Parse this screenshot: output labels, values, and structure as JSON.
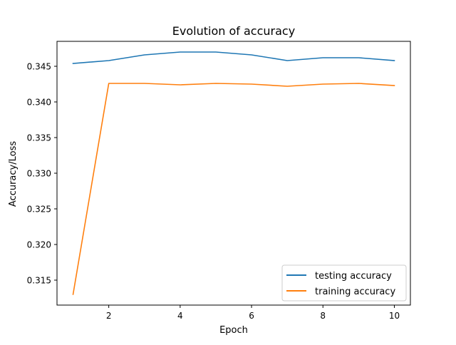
{
  "chart_data": {
    "type": "line",
    "title": "Evolution of accuracy",
    "xlabel": "Epoch",
    "ylabel": "Accuracy/Loss",
    "xlim": [
      0.55,
      10.45
    ],
    "ylim": [
      0.3115,
      0.3485
    ],
    "xticks": [
      2,
      4,
      6,
      8,
      10
    ],
    "yticks": [
      0.315,
      0.32,
      0.325,
      0.33,
      0.335,
      0.34,
      0.345
    ],
    "grid": false,
    "legend_position": "lower-right",
    "x": [
      1,
      2,
      3,
      4,
      5,
      6,
      7,
      8,
      9,
      10
    ],
    "series": [
      {
        "name": "testing accuracy",
        "color": "#1f77b4",
        "values": [
          0.3454,
          0.3458,
          0.3466,
          0.347,
          0.347,
          0.3466,
          0.3458,
          0.3462,
          0.3462,
          0.3458
        ]
      },
      {
        "name": "training accuracy",
        "color": "#ff7f0e",
        "values": [
          0.313,
          0.3426,
          0.3426,
          0.3424,
          0.3426,
          0.3425,
          0.3422,
          0.3425,
          0.3426,
          0.3423
        ]
      }
    ]
  }
}
